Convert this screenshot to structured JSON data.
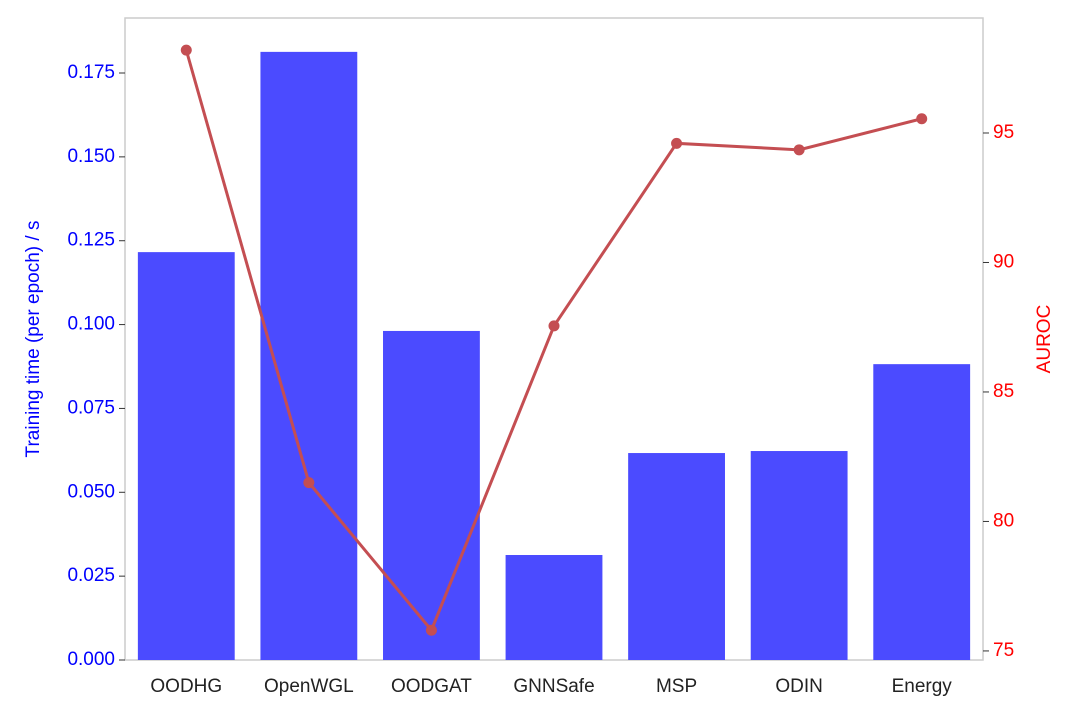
{
  "chart_data": {
    "type": "bar-line",
    "categories": [
      "OODHG",
      "OpenWGL",
      "OODGAT",
      "GNNSafe",
      "MSP",
      "ODIN",
      "Energy"
    ],
    "ylabel": "Training time (per epoch) / s",
    "y2label": "AUROC",
    "ylabel_color": "#0000ff",
    "y2label_color": "#ff0000",
    "series": [
      {
        "type": "bar",
        "color": "#4b4bff",
        "values": [
          0.1216,
          0.1813,
          0.0981,
          0.0313,
          0.0617,
          0.0623,
          0.0882
        ]
      },
      {
        "type": "line",
        "axis": "y2",
        "color": "#c44e52",
        "values": [
          98.2,
          81.5,
          75.8,
          87.55,
          94.6,
          94.35,
          95.55
        ]
      }
    ],
    "ylim": [
      0,
      0.1914
    ],
    "yticks": [
      {
        "value": 0,
        "label": "0.000"
      },
      {
        "value": 0.025,
        "label": "0.025"
      },
      {
        "value": 0.05,
        "label": "0.050"
      },
      {
        "value": 0.075,
        "label": "0.075"
      },
      {
        "value": 0.1,
        "label": "0.100"
      },
      {
        "value": 0.125,
        "label": "0.125"
      },
      {
        "value": 0.15,
        "label": "0.150"
      },
      {
        "value": 0.175,
        "label": "0.175"
      }
    ],
    "y2lim": [
      74.65,
      99.44
    ],
    "y2ticks": [
      75,
      80,
      85,
      90,
      95
    ]
  }
}
